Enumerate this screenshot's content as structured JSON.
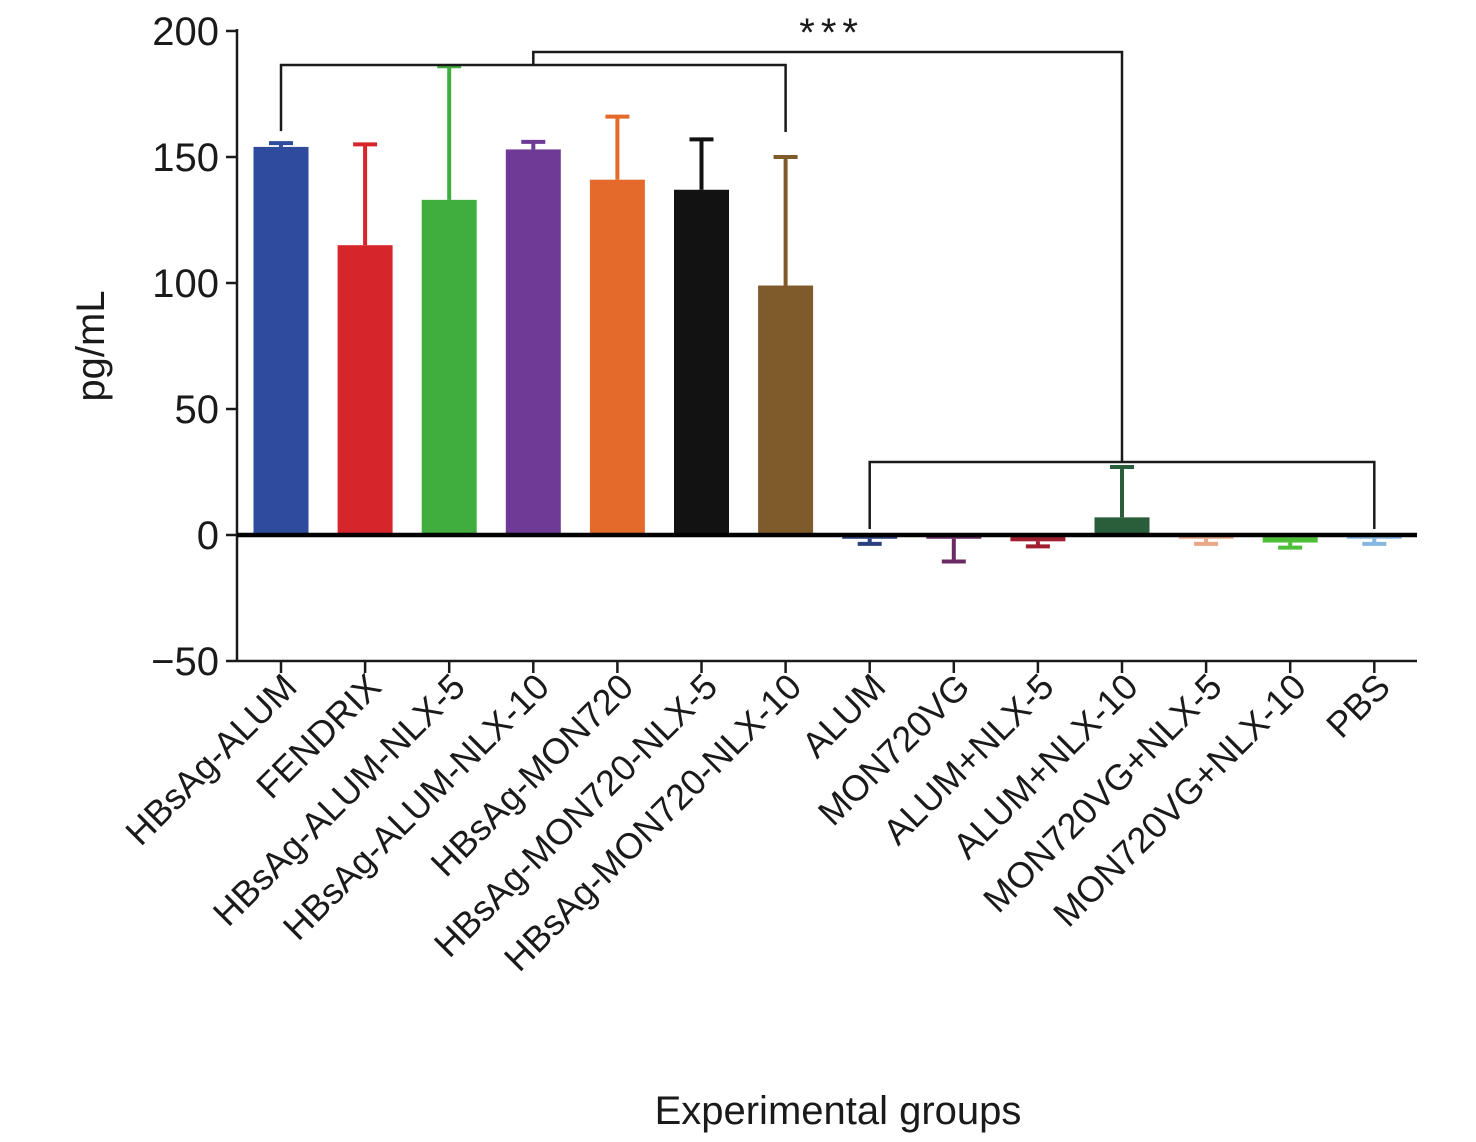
{
  "chart_data": {
    "type": "bar",
    "title": "",
    "xlabel": "Experimental groups",
    "ylabel": "pg/mL",
    "ylim": [
      -50,
      200
    ],
    "yticks": [
      200,
      150,
      100,
      50,
      0,
      -50
    ],
    "ytick_labels": [
      "200",
      "150",
      "100",
      "50",
      "0",
      "−50"
    ],
    "grid": false,
    "legend": "none",
    "categories": [
      "HBsAg-ALUM",
      "FENDRIX",
      "HBsAg-ALUM-NLX-5",
      "HBsAg-ALUM-NLX-10",
      "HBsAg-MON720",
      "HBsAg-MON720-NLX-5",
      "HBsAg-MON720-NLX-10",
      "ALUM",
      "MON720VG",
      "ALUM+NLX-5",
      "ALUM+NLX-10",
      "MON720VG+NLX-5",
      "MON720VG+NLX-10",
      "PBS"
    ],
    "values": [
      154,
      115,
      133,
      153,
      141,
      137,
      99,
      -1.5,
      -1.5,
      -2.5,
      7,
      -1.5,
      -3,
      -1.5
    ],
    "error": [
      1.5,
      40,
      53,
      3,
      25,
      20,
      51,
      2,
      9,
      2,
      20,
      2,
      2,
      2
    ],
    "colors": [
      "#2f4b9e",
      "#d7262b",
      "#3fae3f",
      "#6f3a96",
      "#e46a2c",
      "#121212",
      "#7f5a2b",
      "#2a3f7f",
      "#6b2a63",
      "#a02030",
      "#2a5e3a",
      "#e9a787",
      "#4fbf3a",
      "#86b7e3"
    ],
    "annotation": "***",
    "comparison": {
      "group_a": [
        "HBsAg-ALUM",
        "HBsAg-MON720-NLX-10"
      ],
      "group_b": [
        "ALUM",
        "PBS"
      ],
      "label": "***"
    }
  }
}
